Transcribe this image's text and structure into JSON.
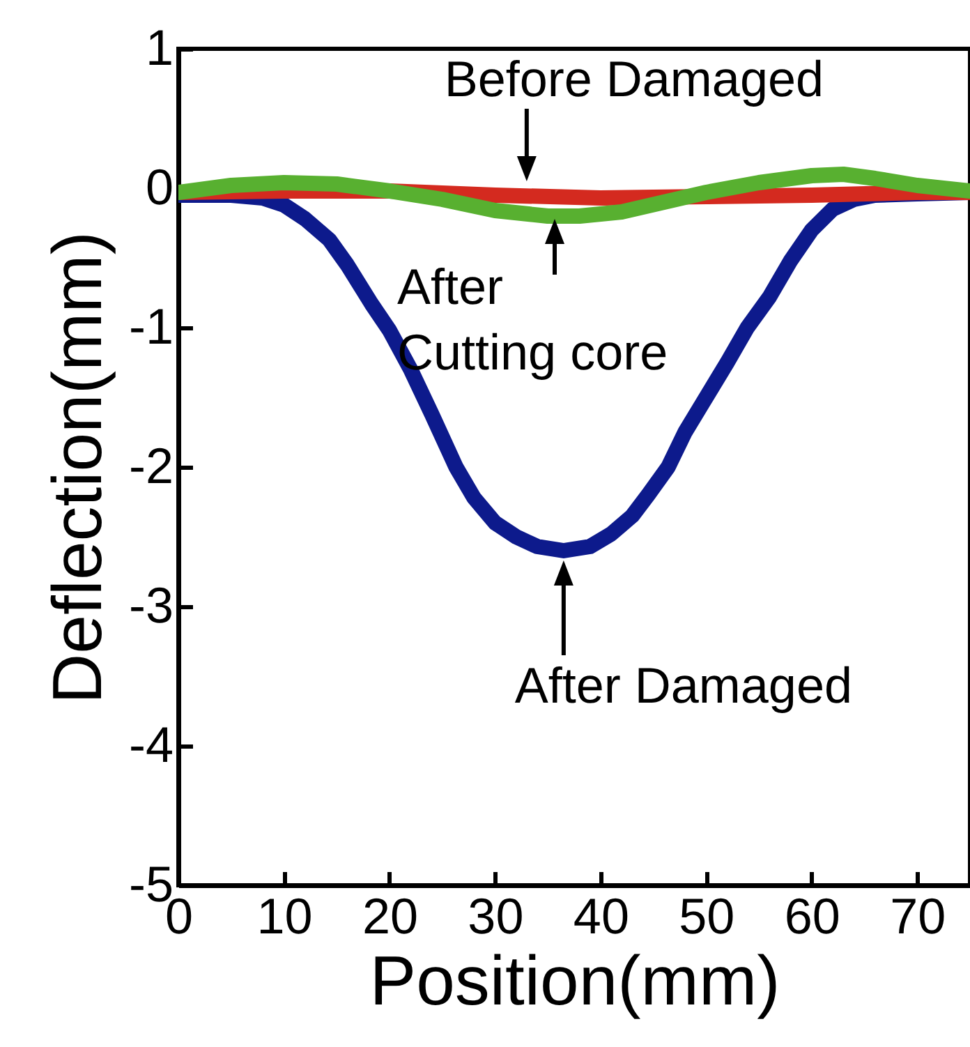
{
  "chart_data": {
    "type": "line",
    "xlabel": "Position(mm)",
    "ylabel": "Deflection(mm)",
    "xlim": [
      0,
      75
    ],
    "xticks": [
      0,
      10,
      20,
      30,
      40,
      50,
      60,
      70
    ],
    "ylim": [
      -5,
      1
    ],
    "yticks": [
      -5,
      -4,
      -3,
      -2,
      -1,
      0,
      1
    ],
    "grid": false,
    "marker": "none",
    "line_style": "solid",
    "series": [
      {
        "color": "#0d1a8c",
        "x": [
          0,
          5,
          8,
          10,
          12,
          14.3,
          16,
          18.3,
          20,
          22,
          24,
          26.3,
          28,
          30,
          32,
          34,
          36.5,
          39,
          41,
          43,
          44.5,
          46.4,
          48,
          50,
          52,
          53.9,
          56,
          58,
          60,
          62,
          64,
          66,
          70,
          75
        ],
        "values": [
          -0.05,
          -0.05,
          -0.07,
          -0.12,
          -0.22,
          -0.37,
          -0.55,
          -0.83,
          -1.02,
          -1.3,
          -1.62,
          -2.0,
          -2.22,
          -2.4,
          -2.5,
          -2.57,
          -2.6,
          -2.57,
          -2.48,
          -2.35,
          -2.2,
          -2.0,
          -1.75,
          -1.5,
          -1.25,
          -1.0,
          -0.78,
          -0.52,
          -0.3,
          -0.15,
          -0.08,
          -0.05,
          -0.04,
          -0.03
        ]
      },
      {
        "color": "#d42a1f",
        "x": [
          0,
          10,
          20,
          30,
          40,
          50,
          60,
          70,
          75
        ],
        "values": [
          -0.03,
          -0.02,
          -0.02,
          -0.05,
          -0.07,
          -0.06,
          -0.05,
          -0.03,
          -0.03
        ]
      },
      {
        "color": "#58b030",
        "x": [
          0,
          5,
          10,
          15,
          20,
          25,
          30,
          35,
          38,
          42,
          46,
          50,
          55,
          60,
          63,
          66,
          70,
          75
        ],
        "values": [
          -0.03,
          0.02,
          0.04,
          0.03,
          -0.02,
          -0.08,
          -0.16,
          -0.2,
          -0.2,
          -0.17,
          -0.1,
          -0.03,
          0.04,
          0.09,
          0.1,
          0.07,
          0.02,
          -0.02
        ]
      }
    ],
    "annotations": [
      {
        "text": "Before Damaged",
        "x": 33,
        "y": -0.05
      },
      "After\nCutting core",
      {
        "text": "After Damaged",
        "x": 36.5,
        "y": -2.65
      }
    ]
  }
}
